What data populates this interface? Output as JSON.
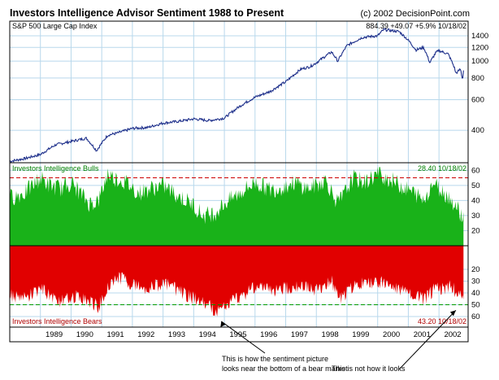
{
  "title": "Investors Intelligence Advisor Sentiment 1988 to Present",
  "copyright": "(c) 2002 DecisionPoint.com",
  "colors": {
    "price_line": "#1c2e8a",
    "bulls": "#19b219",
    "bears": "#e10000",
    "grid": "#b8d8ec",
    "border": "#000000",
    "bull_ref": "#cc0000",
    "bear_ref": "#009900",
    "bulls_label": "#008000",
    "bears_label": "#b00000",
    "text": "#000000",
    "background": "#ffffff"
  },
  "chart_data": [
    {
      "type": "line",
      "title": "S&P 500 Large Cap Index",
      "header": {
        "last": "884.39",
        "change": "+49.07",
        "pct_change": "+5.9%",
        "date": "10/18/02"
      },
      "scale": "log",
      "ylim": [
        260,
        1700
      ],
      "yticks": [
        400,
        600,
        800,
        1000,
        1200,
        1400
      ],
      "ytick_labels": [
        "400",
        "600",
        "800",
        "1000",
        "1200",
        "1400"
      ],
      "x": [
        1988.0,
        1988.5,
        1989.0,
        1989.5,
        1990.0,
        1990.5,
        1990.83,
        1991.2,
        1991.5,
        1992.0,
        1992.5,
        1993.0,
        1993.5,
        1994.0,
        1994.5,
        1995.0,
        1995.5,
        1996.0,
        1996.5,
        1997.0,
        1997.5,
        1997.8,
        1998.0,
        1998.5,
        1998.7,
        1999.0,
        1999.5,
        2000.0,
        2000.2,
        2000.7,
        2001.0,
        2001.25,
        2001.5,
        2001.7,
        2001.9,
        2002.0,
        2002.3,
        2002.5,
        2002.55,
        2002.7,
        2002.77,
        2002.8
      ],
      "values": [
        265,
        275,
        290,
        330,
        345,
        360,
        305,
        375,
        385,
        410,
        415,
        440,
        450,
        465,
        455,
        470,
        550,
        620,
        670,
        760,
        900,
        930,
        980,
        1130,
        1000,
        1230,
        1370,
        1400,
        1520,
        1480,
        1320,
        1160,
        1200,
        980,
        1120,
        1150,
        1100,
        920,
        850,
        900,
        780,
        884.39
      ]
    },
    {
      "type": "area",
      "title": "Investors Intelligence Bulls",
      "header": {
        "last": "28.40",
        "date": "10/18/02"
      },
      "ylim": [
        10,
        65
      ],
      "yticks": [
        20,
        30,
        40,
        50,
        60
      ],
      "ytick_labels": [
        "20",
        "30",
        "40",
        "50",
        "60"
      ],
      "reference_line": 55,
      "x": [
        1988.0,
        1988.5,
        1989.0,
        1989.3,
        1989.7,
        1990.0,
        1990.6,
        1990.9,
        1991.2,
        1991.4,
        1991.8,
        1992.2,
        1992.6,
        1993.0,
        1993.5,
        1994.0,
        1994.3,
        1994.7,
        1995.0,
        1995.5,
        1996.0,
        1996.5,
        1996.9,
        1997.3,
        1997.7,
        1998.0,
        1998.3,
        1998.7,
        1998.9,
        1999.2,
        1999.6,
        2000.0,
        2000.5,
        2000.9,
        2001.2,
        2001.5,
        2001.8,
        2002.0,
        2002.3,
        2002.6,
        2002.8
      ],
      "values": [
        42,
        45,
        55,
        50,
        48,
        52,
        38,
        40,
        58,
        55,
        52,
        45,
        48,
        50,
        43,
        37,
        30,
        32,
        38,
        45,
        52,
        47,
        49,
        52,
        48,
        50,
        54,
        38,
        44,
        55,
        52,
        58,
        53,
        48,
        45,
        40,
        52,
        48,
        43,
        35,
        28.4
      ]
    },
    {
      "type": "area",
      "title": "Investors Intelligence Bears",
      "header": {
        "last": "43.20",
        "date": "10/18/02"
      },
      "ylim": [
        0,
        69
      ],
      "inverted": true,
      "yticks": [
        20,
        30,
        40,
        50,
        60
      ],
      "ytick_labels": [
        "20",
        "30",
        "40",
        "50",
        "60"
      ],
      "reference_line": 50,
      "x": [
        1988.0,
        1988.5,
        1989.0,
        1989.4,
        1989.8,
        1990.0,
        1990.5,
        1990.9,
        1991.3,
        1991.7,
        1992.0,
        1992.5,
        1993.0,
        1993.5,
        1994.0,
        1994.4,
        1994.8,
        1995.0,
        1995.3,
        1995.7,
        1996.0,
        1996.5,
        1997.0,
        1997.5,
        1998.0,
        1998.5,
        1998.8,
        1999.2,
        1999.7,
        2000.0,
        2000.5,
        2000.9,
        2001.2,
        2001.5,
        2001.8,
        2002.0,
        2002.4,
        2002.6,
        2002.8
      ],
      "values": [
        42,
        45,
        36,
        44,
        48,
        42,
        46,
        52,
        30,
        27,
        33,
        36,
        32,
        38,
        45,
        50,
        56,
        52,
        46,
        40,
        34,
        38,
        36,
        34,
        38,
        30,
        45,
        34,
        32,
        30,
        35,
        40,
        42,
        46,
        38,
        36,
        35,
        40,
        43.2
      ]
    }
  ],
  "x_axis": {
    "year_labels": [
      "1989",
      "1990",
      "1991",
      "1992",
      "1993",
      "1994",
      "1995",
      "1996",
      "1997",
      "1998",
      "1999",
      "2000",
      "2001",
      "2002"
    ],
    "x_min": 1988.0,
    "x_max": 2002.95
  },
  "annotations": [
    {
      "text_line1": "This is how the sentiment picture",
      "text_line2": "looks near the bottom of a bear market",
      "target_year": 1994.9,
      "target_bears": 60
    },
    {
      "text_line1": "This is not how it looks",
      "target_year": 2002.55,
      "target_bears": 52
    }
  ]
}
